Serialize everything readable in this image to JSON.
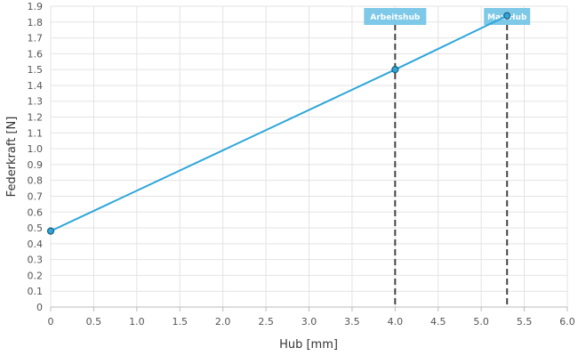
{
  "chart_data": {
    "type": "line",
    "xlabel": "Hub [mm]",
    "ylabel": "Federkraft [N]",
    "xlim": [
      0,
      6
    ],
    "ylim": [
      0,
      1.9
    ],
    "x_ticks": [
      "0",
      "0.5",
      "1.0",
      "1.5",
      "2.0",
      "2.5",
      "3.0",
      "3.5",
      "4.0",
      "4.5",
      "5.0",
      "5.5",
      "6.0"
    ],
    "y_ticks": [
      "0",
      "0.1",
      "0.2",
      "0.3",
      "0.4",
      "0.5",
      "0.6",
      "0.7",
      "0.8",
      "0.9",
      "1.0",
      "1.1",
      "1.2",
      "1.3",
      "1.4",
      "1.5",
      "1.6",
      "1.7",
      "1.8",
      "1.9"
    ],
    "grid": true,
    "series": [
      {
        "color": "#2ea6d9",
        "points": [
          {
            "x": 0,
            "y": 0.48
          },
          {
            "x": 4.0,
            "y": 1.5
          },
          {
            "x": 5.3,
            "y": 1.84
          }
        ]
      }
    ],
    "markers": [
      {
        "label": "Arbeitshub",
        "x": 4.0
      },
      {
        "label": "Max Hub",
        "x": 5.3
      }
    ],
    "colors": {
      "line": "#2ea6d9",
      "marker_box": "#7ec8e8",
      "dashed_line": "#444444",
      "grid": "#e3e3e3"
    }
  }
}
